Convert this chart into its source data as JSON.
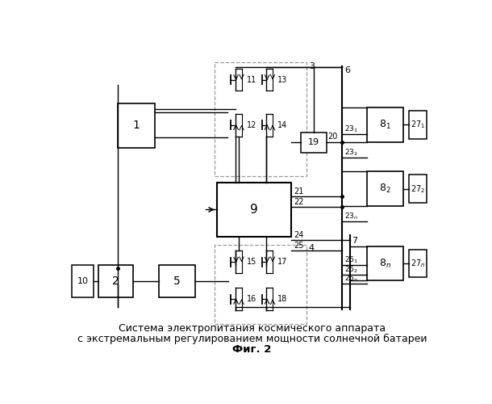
{
  "title_line1": "Система электропитания космического аппарата",
  "title_line2": "с экстремальным регулированием мощности солнечной батареи",
  "title_line3": "Фиг. 2",
  "bg_color": "#ffffff",
  "lc": "#000000",
  "dc": "#999999",
  "fig_width": 6.1,
  "fig_height": 5.0,
  "dpi": 100
}
